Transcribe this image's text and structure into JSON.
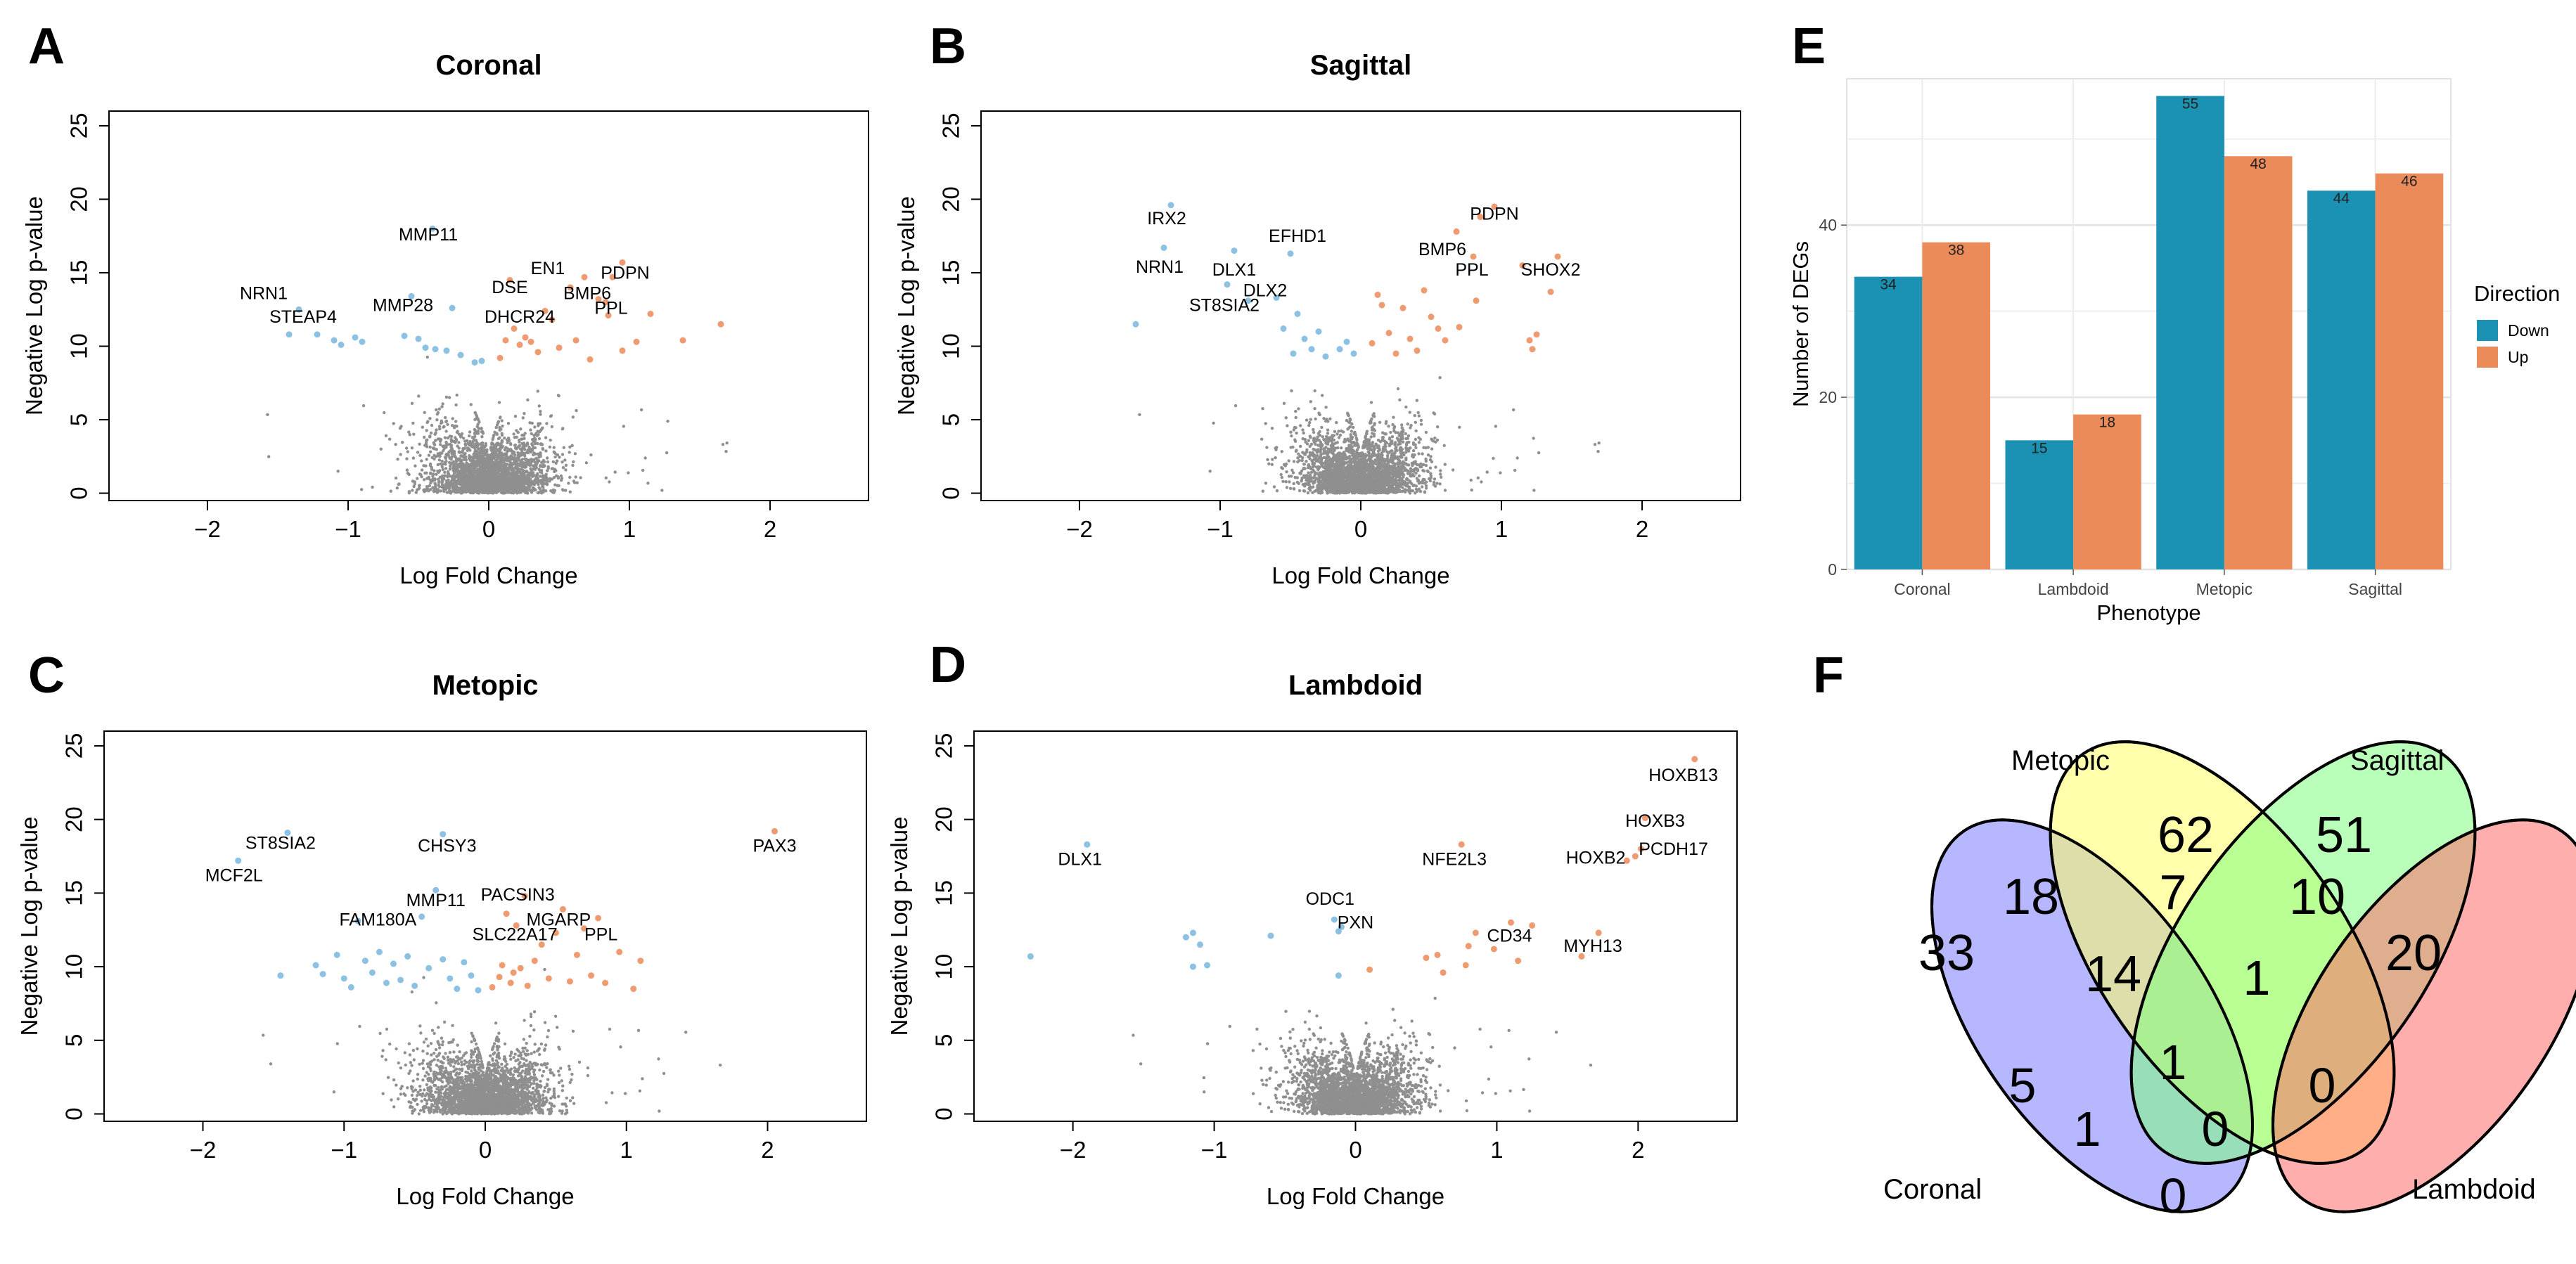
{
  "panels": {
    "A": {
      "letter": "A"
    },
    "B": {
      "letter": "B"
    },
    "C": {
      "letter": "C"
    },
    "D": {
      "letter": "D"
    },
    "E": {
      "letter": "E"
    },
    "F": {
      "letter": "F"
    }
  },
  "chart_data": [
    {
      "id": "A",
      "type": "scatter",
      "title": "Coronal",
      "xlabel": "Log Fold Change",
      "ylabel": "Negative Log p-value",
      "xlim": [
        -2.7,
        2.7
      ],
      "ylim": [
        -0.5,
        26
      ],
      "xticks": [
        -2,
        -1,
        0,
        1,
        2
      ],
      "yticks": [
        0,
        5,
        10,
        15,
        20,
        25
      ],
      "down_points": [
        [
          -1.42,
          10.8
        ],
        [
          -1.35,
          12.5
        ],
        [
          -1.22,
          10.8
        ],
        [
          -1.1,
          10.4
        ],
        [
          -1.05,
          10.1
        ],
        [
          -0.95,
          10.6
        ],
        [
          -0.9,
          10.3
        ],
        [
          -0.6,
          10.7
        ],
        [
          -0.55,
          13.4
        ],
        [
          -0.5,
          10.5
        ],
        [
          -0.45,
          9.9
        ],
        [
          -0.38,
          9.8
        ],
        [
          -0.4,
          18.0
        ],
        [
          -0.3,
          9.7
        ],
        [
          -0.26,
          12.6
        ],
        [
          -0.2,
          9.4
        ],
        [
          -0.1,
          8.9
        ],
        [
          -0.05,
          9.0
        ]
      ],
      "up_points": [
        [
          0.08,
          9.2
        ],
        [
          0.12,
          10.4
        ],
        [
          0.15,
          14.5
        ],
        [
          0.18,
          11.2
        ],
        [
          0.22,
          10.1
        ],
        [
          0.26,
          10.6
        ],
        [
          0.3,
          10.3
        ],
        [
          0.35,
          9.6
        ],
        [
          0.4,
          12.4
        ],
        [
          0.45,
          11.8
        ],
        [
          0.5,
          9.9
        ],
        [
          0.58,
          14.0
        ],
        [
          0.62,
          10.4
        ],
        [
          0.68,
          14.7
        ],
        [
          0.72,
          9.1
        ],
        [
          0.78,
          13.2
        ],
        [
          0.83,
          13.0
        ],
        [
          0.85,
          12.1
        ],
        [
          0.88,
          14.7
        ],
        [
          0.95,
          15.7
        ],
        [
          0.95,
          9.7
        ],
        [
          1.05,
          10.3
        ],
        [
          1.15,
          12.2
        ],
        [
          1.38,
          10.4
        ],
        [
          1.65,
          11.5
        ]
      ],
      "annotations": [
        {
          "text": "MMP11",
          "x": -0.43,
          "y": 17.2
        },
        {
          "text": "NRN1",
          "x": -1.6,
          "y": 13.2
        },
        {
          "text": "STEAP4",
          "x": -1.32,
          "y": 11.6
        },
        {
          "text": "MMP28",
          "x": -0.61,
          "y": 12.4
        },
        {
          "text": "DSE",
          "x": 0.15,
          "y": 13.6
        },
        {
          "text": "DHCR24",
          "x": 0.22,
          "y": 11.6
        },
        {
          "text": "EN1",
          "x": 0.42,
          "y": 14.9
        },
        {
          "text": "PDPN",
          "x": 0.97,
          "y": 14.6
        },
        {
          "text": "BMP6",
          "x": 0.7,
          "y": 13.2
        },
        {
          "text": "PPL",
          "x": 0.87,
          "y": 12.2
        }
      ]
    },
    {
      "id": "B",
      "type": "scatter",
      "title": "Sagittal",
      "xlabel": "Log Fold Change",
      "ylabel": "Negative Log p-value",
      "xlim": [
        -2.7,
        2.7
      ],
      "ylim": [
        -0.5,
        26
      ],
      "xticks": [
        -2,
        -1,
        0,
        1,
        2
      ],
      "yticks": [
        0,
        5,
        10,
        15,
        20,
        25
      ],
      "down_points": [
        [
          -1.6,
          11.5
        ],
        [
          -1.4,
          16.7
        ],
        [
          -1.35,
          19.6
        ],
        [
          -0.95,
          14.2
        ],
        [
          -0.9,
          16.5
        ],
        [
          -0.8,
          13.1
        ],
        [
          -0.6,
          13.3
        ],
        [
          -0.55,
          11.2
        ],
        [
          -0.5,
          16.3
        ],
        [
          -0.48,
          9.5
        ],
        [
          -0.45,
          12.2
        ],
        [
          -0.4,
          10.5
        ],
        [
          -0.35,
          9.8
        ],
        [
          -0.3,
          11.0
        ],
        [
          -0.25,
          9.3
        ],
        [
          -0.15,
          9.8
        ],
        [
          -0.1,
          10.3
        ],
        [
          -0.05,
          9.5
        ]
      ],
      "up_points": [
        [
          0.08,
          10.2
        ],
        [
          0.12,
          13.5
        ],
        [
          0.15,
          12.8
        ],
        [
          0.2,
          10.9
        ],
        [
          0.25,
          9.5
        ],
        [
          0.3,
          12.6
        ],
        [
          0.35,
          10.5
        ],
        [
          0.4,
          9.7
        ],
        [
          0.45,
          13.8
        ],
        [
          0.5,
          12.0
        ],
        [
          0.55,
          11.2
        ],
        [
          0.6,
          10.4
        ],
        [
          0.68,
          17.8
        ],
        [
          0.7,
          11.3
        ],
        [
          0.8,
          16.1
        ],
        [
          0.82,
          13.1
        ],
        [
          0.85,
          18.8
        ],
        [
          0.95,
          19.5
        ],
        [
          1.15,
          15.5
        ],
        [
          1.2,
          10.4
        ],
        [
          1.22,
          9.8
        ],
        [
          1.25,
          10.8
        ],
        [
          1.35,
          13.7
        ],
        [
          1.4,
          16.1
        ]
      ],
      "annotations": [
        {
          "text": "IRX2",
          "x": -1.38,
          "y": 18.3
        },
        {
          "text": "NRN1",
          "x": -1.43,
          "y": 15.0
        },
        {
          "text": "EFHD1",
          "x": -0.45,
          "y": 17.1
        },
        {
          "text": "DLX1",
          "x": -0.9,
          "y": 14.8
        },
        {
          "text": "DLX2",
          "x": -0.68,
          "y": 13.4
        },
        {
          "text": "ST8SIA2",
          "x": -0.97,
          "y": 12.4
        },
        {
          "text": "PDPN",
          "x": 0.95,
          "y": 18.6
        },
        {
          "text": "BMP6",
          "x": 0.58,
          "y": 16.2
        },
        {
          "text": "PPL",
          "x": 0.79,
          "y": 14.8
        },
        {
          "text": "SHOX2",
          "x": 1.35,
          "y": 14.8
        }
      ]
    },
    {
      "id": "C",
      "type": "scatter",
      "title": "Metopic",
      "xlabel": "Log Fold Change",
      "ylabel": "Negative Log p-value",
      "xlim": [
        -2.7,
        2.7
      ],
      "ylim": [
        -0.5,
        26
      ],
      "xticks": [
        -2,
        -1,
        0,
        1,
        2
      ],
      "yticks": [
        0,
        5,
        10,
        15,
        20,
        25
      ],
      "down_points": [
        [
          -1.75,
          17.2
        ],
        [
          -1.4,
          19.1
        ],
        [
          -1.45,
          9.4
        ],
        [
          -1.2,
          10.1
        ],
        [
          -1.15,
          9.5
        ],
        [
          -1.05,
          10.8
        ],
        [
          -1.0,
          9.2
        ],
        [
          -0.95,
          8.6
        ],
        [
          -0.9,
          13.1
        ],
        [
          -0.85,
          10.4
        ],
        [
          -0.8,
          9.6
        ],
        [
          -0.75,
          11.0
        ],
        [
          -0.7,
          8.9
        ],
        [
          -0.65,
          10.2
        ],
        [
          -0.6,
          9.1
        ],
        [
          -0.55,
          10.7
        ],
        [
          -0.5,
          8.7
        ],
        [
          -0.45,
          13.4
        ],
        [
          -0.4,
          9.9
        ],
        [
          -0.35,
          15.2
        ],
        [
          -0.3,
          19.0
        ],
        [
          -0.3,
          10.5
        ],
        [
          -0.25,
          9.2
        ],
        [
          -0.2,
          8.5
        ],
        [
          -0.15,
          10.3
        ],
        [
          -0.1,
          9.4
        ],
        [
          -0.05,
          8.4
        ]
      ],
      "up_points": [
        [
          0.05,
          8.6
        ],
        [
          0.1,
          9.3
        ],
        [
          0.12,
          10.1
        ],
        [
          0.15,
          13.6
        ],
        [
          0.18,
          8.9
        ],
        [
          0.2,
          9.6
        ],
        [
          0.22,
          12.8
        ],
        [
          0.25,
          9.9
        ],
        [
          0.28,
          14.8
        ],
        [
          0.3,
          8.7
        ],
        [
          0.35,
          10.4
        ],
        [
          0.4,
          11.5
        ],
        [
          0.45,
          9.2
        ],
        [
          0.5,
          12.3
        ],
        [
          0.55,
          13.9
        ],
        [
          0.6,
          9.0
        ],
        [
          0.65,
          10.8
        ],
        [
          0.7,
          12.6
        ],
        [
          0.75,
          9.4
        ],
        [
          0.8,
          13.3
        ],
        [
          0.85,
          8.9
        ],
        [
          0.95,
          11.0
        ],
        [
          1.05,
          8.5
        ],
        [
          1.1,
          10.4
        ],
        [
          2.05,
          19.2
        ]
      ],
      "annotations": [
        {
          "text": "ST8SIA2",
          "x": -1.45,
          "y": 18.0
        },
        {
          "text": "MCF2L",
          "x": -1.78,
          "y": 15.8
        },
        {
          "text": "CHSY3",
          "x": -0.27,
          "y": 17.8
        },
        {
          "text": "MMP11",
          "x": -0.35,
          "y": 14.1
        },
        {
          "text": "FAM180A",
          "x": -0.76,
          "y": 12.8
        },
        {
          "text": "PACSIN3",
          "x": 0.23,
          "y": 14.5
        },
        {
          "text": "MGARP",
          "x": 0.52,
          "y": 12.8
        },
        {
          "text": "SLC22A17",
          "x": 0.21,
          "y": 11.8
        },
        {
          "text": "PPL",
          "x": 0.82,
          "y": 11.8
        },
        {
          "text": "PAX3",
          "x": 2.05,
          "y": 17.8
        }
      ]
    },
    {
      "id": "D",
      "type": "scatter",
      "title": "Lambdoid",
      "xlabel": "Log Fold Change",
      "ylabel": "Negative Log p-value",
      "xlim": [
        -2.7,
        2.7
      ],
      "ylim": [
        -0.5,
        26
      ],
      "xticks": [
        -2,
        -1,
        0,
        1,
        2
      ],
      "yticks": [
        0,
        5,
        10,
        15,
        20,
        25
      ],
      "down_points": [
        [
          -2.3,
          10.7
        ],
        [
          -1.9,
          18.3
        ],
        [
          -1.2,
          12.0
        ],
        [
          -1.15,
          12.3
        ],
        [
          -1.1,
          11.5
        ],
        [
          -1.15,
          10.0
        ],
        [
          -1.05,
          10.1
        ],
        [
          -0.6,
          12.1
        ],
        [
          -0.15,
          13.2
        ],
        [
          -0.12,
          12.4
        ],
        [
          -0.1,
          12.7
        ],
        [
          -0.12,
          9.4
        ]
      ],
      "up_points": [
        [
          0.1,
          9.8
        ],
        [
          0.5,
          10.6
        ],
        [
          0.58,
          10.8
        ],
        [
          0.62,
          9.6
        ],
        [
          0.75,
          18.3
        ],
        [
          0.78,
          10.1
        ],
        [
          0.8,
          11.4
        ],
        [
          0.85,
          12.3
        ],
        [
          0.98,
          11.2
        ],
        [
          1.1,
          13.0
        ],
        [
          1.15,
          10.4
        ],
        [
          1.25,
          12.8
        ],
        [
          1.6,
          10.7
        ],
        [
          1.72,
          12.3
        ],
        [
          1.92,
          17.2
        ],
        [
          1.98,
          17.5
        ],
        [
          2.02,
          18.0
        ],
        [
          2.05,
          20.1
        ],
        [
          2.4,
          24.1
        ]
      ],
      "annotations": [
        {
          "text": "DLX1",
          "x": -1.95,
          "y": 16.9
        },
        {
          "text": "ODC1",
          "x": -0.18,
          "y": 14.2
        },
        {
          "text": "PXN",
          "x": 0.0,
          "y": 12.6
        },
        {
          "text": "NFE2L3",
          "x": 0.7,
          "y": 16.9
        },
        {
          "text": "CD34",
          "x": 1.09,
          "y": 11.7
        },
        {
          "text": "MYH13",
          "x": 1.68,
          "y": 11.0
        },
        {
          "text": "HOXB13",
          "x": 2.32,
          "y": 22.6
        },
        {
          "text": "HOXB3",
          "x": 2.12,
          "y": 19.5
        },
        {
          "text": "HOXB2",
          "x": 1.7,
          "y": 17.0
        },
        {
          "text": "PCDH17",
          "x": 2.25,
          "y": 17.6
        }
      ]
    },
    {
      "id": "E",
      "type": "bar",
      "title": "",
      "xlabel": "Phenotype",
      "ylabel": "Number of DEGs",
      "categories": [
        "Coronal",
        "Lambdoid",
        "Metopic",
        "Sagittal"
      ],
      "ylim": [
        0,
        57
      ],
      "yticks": [
        0,
        20,
        40
      ],
      "series": [
        {
          "name": "Down",
          "values": [
            34,
            15,
            55,
            44
          ],
          "color": "#1b92b3"
        },
        {
          "name": "Up",
          "values": [
            38,
            18,
            48,
            46
          ],
          "color": "#ec8b5a"
        }
      ],
      "legend_title": "Direction",
      "legend_position": "right"
    },
    {
      "id": "F",
      "type": "venn",
      "sets": [
        "Coronal",
        "Metopic",
        "Sagittal",
        "Lambdoid"
      ],
      "set_colors": [
        "#7b7bff",
        "#ffff66",
        "#80ff80",
        "#ff6b6b"
      ],
      "regions": [
        {
          "sets": [
            "Coronal"
          ],
          "value": 33
        },
        {
          "sets": [
            "Metopic"
          ],
          "value": 62
        },
        {
          "sets": [
            "Sagittal"
          ],
          "value": 51
        },
        {
          "sets": [
            "Lambdoid"
          ],
          "value": 20
        },
        {
          "sets": [
            "Coronal",
            "Metopic"
          ],
          "value": 18
        },
        {
          "sets": [
            "Metopic",
            "Sagittal"
          ],
          "value": 7
        },
        {
          "sets": [
            "Sagittal",
            "Lambdoid"
          ],
          "value": 10
        },
        {
          "sets": [
            "Coronal",
            "Metopic",
            "Sagittal"
          ],
          "value": 14
        },
        {
          "sets": [
            "Metopic",
            "Sagittal",
            "Lambdoid"
          ],
          "value": 1
        },
        {
          "sets": [
            "Coronal",
            "Metopic",
            "Sagittal",
            "Lambdoid"
          ],
          "value": 1
        },
        {
          "sets": [
            "Coronal",
            "Sagittal"
          ],
          "value": 5
        },
        {
          "sets": [
            "Metopic",
            "Lambdoid"
          ],
          "value": 0
        },
        {
          "sets": [
            "Coronal",
            "Sagittal",
            "Lambdoid"
          ],
          "value": 1
        },
        {
          "sets": [
            "Coronal",
            "Metopic",
            "Lambdoid"
          ],
          "value": 0
        },
        {
          "sets": [
            "Coronal",
            "Lambdoid"
          ],
          "value": 0
        }
      ]
    }
  ]
}
